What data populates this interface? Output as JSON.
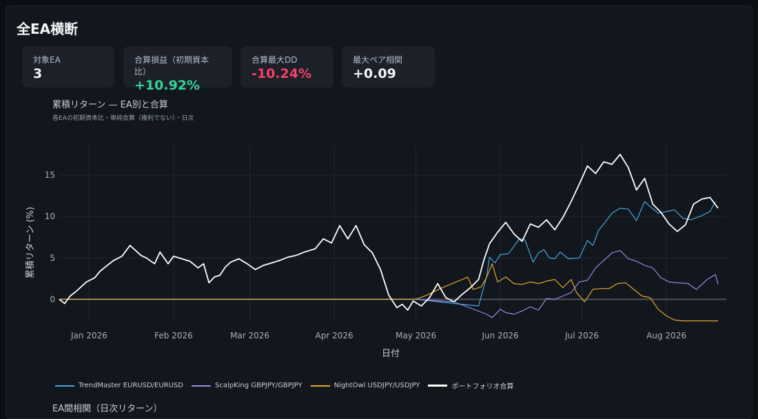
{
  "page": {
    "title": "全EA横断"
  },
  "kpis": [
    {
      "label": "対象EA",
      "value": "3"
    },
    {
      "label": "合算損益（初期資本比）",
      "value": "+10.92%"
    },
    {
      "label": "合算最大DD",
      "value": "-10.24%"
    },
    {
      "label": "最大ペア相関",
      "value": "+0.09"
    }
  ],
  "colors": {
    "positive": "#34d399",
    "negative": "#fb3f6c",
    "trendmaster": "#4aa8e0",
    "scalpking": "#9b87e6",
    "nightowl": "#e3a92b",
    "portfolio": "#ffffff"
  },
  "chart_data": {
    "type": "line",
    "title": "累積リターン — EA別と合算",
    "subtitle": "各EAの初期資本比・単純合算（複利でない）・日次",
    "xlabel": "日付",
    "ylabel": "累積リターン (%)",
    "xlim": [
      "2025-12-21",
      "2026-08-23"
    ],
    "ylim": [
      -2.8,
      18.5
    ],
    "x_ticks": [
      "Jan 2026",
      "Feb 2026",
      "Mar 2026",
      "Apr 2026",
      "May 2026",
      "Jun 2026",
      "Jul 2026",
      "Aug 2026"
    ],
    "y_ticks": [
      0,
      5,
      10,
      15
    ],
    "grid": true,
    "legend": "bottom",
    "series": [
      {
        "name": "TrendMaster EURUSD/EURUSD",
        "color": "#4aa8e0",
        "x": [
          "2025-12-21",
          "2026-05-01",
          "2026-05-15",
          "2026-05-24",
          "2026-05-27",
          "2026-05-28",
          "2026-05-30",
          "2026-06-01",
          "2026-06-04",
          "2026-06-08",
          "2026-06-10",
          "2026-06-13",
          "2026-06-15",
          "2026-06-17",
          "2026-06-19",
          "2026-06-21",
          "2026-06-23",
          "2026-06-26",
          "2026-06-30",
          "2026-07-03",
          "2026-07-05",
          "2026-07-07",
          "2026-07-09",
          "2026-07-12",
          "2026-07-15",
          "2026-07-18",
          "2026-07-21",
          "2026-07-24",
          "2026-07-26",
          "2026-07-29",
          "2026-08-01",
          "2026-08-04",
          "2026-08-07",
          "2026-08-10",
          "2026-08-14",
          "2026-08-17",
          "2026-08-19"
        ],
        "y": [
          0,
          0,
          -0.5,
          -0.8,
          2.8,
          5.1,
          4.4,
          5.4,
          5.5,
          7.3,
          7.2,
          4.5,
          5.6,
          6.0,
          5.0,
          4.9,
          5.7,
          4.9,
          5.0,
          7.1,
          6.5,
          8.3,
          9.1,
          10.4,
          11.0,
          10.9,
          9.5,
          11.8,
          11.2,
          10.4,
          10.6,
          10.8,
          9.8,
          9.6,
          10.1,
          10.6,
          11.8
        ]
      },
      {
        "name": "ScalpKing GBPJPY/GBPJPY",
        "color": "#9b87e6",
        "x": [
          "2025-12-21",
          "2026-05-01",
          "2026-05-15",
          "2026-05-27",
          "2026-05-29",
          "2026-06-01",
          "2026-06-03",
          "2026-06-06",
          "2026-06-09",
          "2026-06-12",
          "2026-06-15",
          "2026-06-18",
          "2026-06-21",
          "2026-06-24",
          "2026-06-27",
          "2026-06-30",
          "2026-07-03",
          "2026-07-06",
          "2026-07-09",
          "2026-07-12",
          "2026-07-15",
          "2026-07-18",
          "2026-07-21",
          "2026-07-24",
          "2026-07-27",
          "2026-07-30",
          "2026-08-02",
          "2026-08-05",
          "2026-08-09",
          "2026-08-12",
          "2026-08-16",
          "2026-08-19",
          "2026-08-20"
        ],
        "y": [
          0,
          0,
          -0.3,
          -1.8,
          -2.2,
          -1.2,
          -1.6,
          -1.8,
          -1.4,
          -0.9,
          -1.3,
          0.1,
          0.0,
          0.4,
          0.8,
          2.1,
          2.3,
          3.8,
          4.7,
          5.6,
          5.9,
          4.9,
          4.6,
          4.1,
          3.8,
          2.6,
          2.1,
          2.0,
          1.9,
          1.2,
          2.4,
          3.0,
          1.8
        ]
      },
      {
        "name": "NightOwl USDJPY/USDJPY",
        "color": "#e3a92b",
        "x": [
          "2025-12-21",
          "2026-05-01",
          "2026-05-05",
          "2026-05-10",
          "2026-05-15",
          "2026-05-18",
          "2026-05-20",
          "2026-05-22",
          "2026-05-25",
          "2026-05-27",
          "2026-05-29",
          "2026-05-31",
          "2026-06-03",
          "2026-06-06",
          "2026-06-09",
          "2026-06-12",
          "2026-06-15",
          "2026-06-18",
          "2026-06-21",
          "2026-06-24",
          "2026-06-27",
          "2026-06-29",
          "2026-07-02",
          "2026-07-05",
          "2026-07-08",
          "2026-07-11",
          "2026-07-14",
          "2026-07-17",
          "2026-07-20",
          "2026-07-23",
          "2026-07-26",
          "2026-07-29",
          "2026-08-01",
          "2026-08-04",
          "2026-08-07",
          "2026-08-12",
          "2026-08-20"
        ],
        "y": [
          0,
          0,
          0.5,
          1.3,
          2.0,
          2.4,
          2.7,
          1.2,
          1.5,
          2.7,
          4.3,
          2.1,
          2.7,
          1.9,
          1.8,
          2.1,
          1.9,
          2.2,
          2.4,
          1.4,
          2.4,
          0.8,
          -0.3,
          1.2,
          1.3,
          1.3,
          1.9,
          2.0,
          1.2,
          0.4,
          0.2,
          -1.2,
          -2.0,
          -2.5,
          -2.6,
          -2.6,
          -2.6
        ]
      },
      {
        "name": "ポートフォリオ合算",
        "color": "#ffffff",
        "x": [
          "2025-12-21",
          "2025-12-23",
          "2025-12-25",
          "2025-12-27",
          "2025-12-31",
          "2026-01-03",
          "2026-01-05",
          "2026-01-08",
          "2026-01-10",
          "2026-01-13",
          "2026-01-16",
          "2026-01-20",
          "2026-01-22",
          "2026-01-25",
          "2026-01-27",
          "2026-01-30",
          "2026-02-01",
          "2026-02-04",
          "2026-02-07",
          "2026-02-10",
          "2026-02-12",
          "2026-02-14",
          "2026-02-16",
          "2026-02-18",
          "2026-02-20",
          "2026-02-22",
          "2026-02-25",
          "2026-02-28",
          "2026-03-03",
          "2026-03-06",
          "2026-03-09",
          "2026-03-12",
          "2026-03-15",
          "2026-03-18",
          "2026-03-21",
          "2026-03-25",
          "2026-03-28",
          "2026-03-31",
          "2026-04-03",
          "2026-04-06",
          "2026-04-09",
          "2026-04-12",
          "2026-04-15",
          "2026-04-18",
          "2026-04-21",
          "2026-04-24",
          "2026-04-26",
          "2026-04-28",
          "2026-04-30",
          "2026-05-03",
          "2026-05-06",
          "2026-05-09",
          "2026-05-12",
          "2026-05-15",
          "2026-05-18",
          "2026-05-21",
          "2026-05-24",
          "2026-05-26",
          "2026-05-28",
          "2026-05-31",
          "2026-06-03",
          "2026-06-06",
          "2026-06-09",
          "2026-06-12",
          "2026-06-15",
          "2026-06-18",
          "2026-06-21",
          "2026-06-24",
          "2026-06-27",
          "2026-06-30",
          "2026-07-03",
          "2026-07-06",
          "2026-07-09",
          "2026-07-12",
          "2026-07-15",
          "2026-07-18",
          "2026-07-21",
          "2026-07-24",
          "2026-07-27",
          "2026-07-30",
          "2026-08-02",
          "2026-08-05",
          "2026-08-08",
          "2026-08-11",
          "2026-08-14",
          "2026-08-17",
          "2026-08-20"
        ],
        "y": [
          0,
          -0.5,
          0.4,
          0.9,
          2.1,
          2.6,
          3.4,
          4.2,
          4.7,
          5.2,
          6.5,
          5.3,
          5.0,
          4.3,
          5.7,
          4.3,
          5.2,
          4.9,
          4.6,
          3.8,
          4.3,
          2.0,
          2.7,
          2.9,
          3.9,
          4.5,
          4.9,
          4.3,
          3.6,
          4.1,
          4.4,
          4.7,
          5.1,
          5.3,
          5.7,
          6.1,
          7.3,
          6.8,
          8.9,
          7.3,
          8.9,
          6.6,
          5.6,
          3.6,
          0.5,
          -1.0,
          -0.6,
          -1.3,
          -0.2,
          -0.8,
          0.2,
          1.9,
          0.2,
          -0.3,
          0.6,
          1.4,
          2.4,
          4.8,
          6.7,
          8.1,
          9.3,
          7.9,
          7.0,
          9.1,
          8.7,
          9.6,
          8.4,
          9.9,
          11.8,
          13.9,
          16.1,
          15.2,
          16.6,
          16.3,
          17.5,
          15.9,
          13.2,
          14.6,
          11.5,
          10.5,
          9.1,
          8.2,
          9.0,
          11.5,
          12.1,
          12.3,
          11.0
        ]
      }
    ]
  },
  "next_section": {
    "title": "EA間相関（日次リターン）"
  }
}
